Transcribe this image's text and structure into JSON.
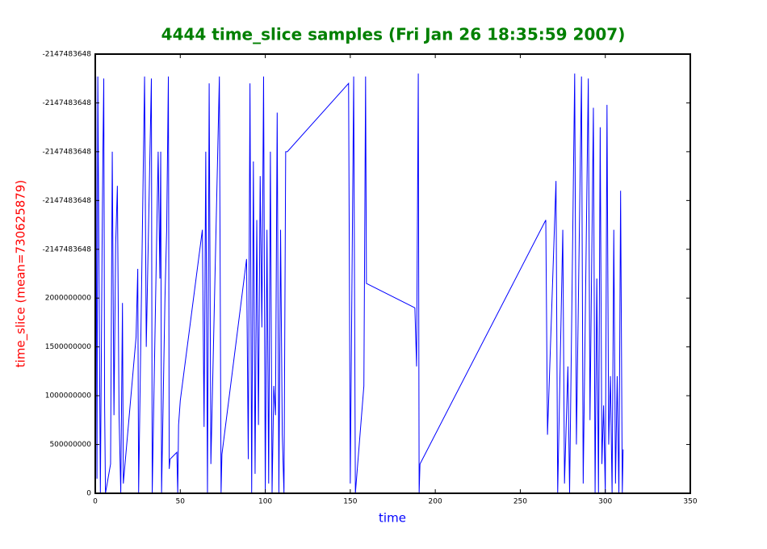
{
  "chart_data": {
    "type": "line",
    "title": "4444 time_slice samples (Fri Jan 26 18:35:59 2007)",
    "x_label": "time",
    "y_label": "time_slice (mean=730625879)",
    "xlim": [
      0,
      350
    ],
    "xticks": [
      0,
      50,
      100,
      150,
      200,
      250,
      300,
      350
    ],
    "ylim": [
      0,
      4500000000
    ],
    "yticks": [
      0,
      500000000,
      1000000000,
      1500000000,
      2000000000,
      {
        "value": 2500000000,
        "label": "-2147483648"
      },
      {
        "value": 3000000000,
        "label": "-2147483648"
      },
      {
        "value": 3500000000,
        "label": "-2147483648"
      },
      {
        "value": 4000000000,
        "label": "-2147483648"
      },
      {
        "value": 4500000000,
        "label": "-2147483648"
      }
    ],
    "series": [
      {
        "color": "#0000ff",
        "x": [
          0.3,
          1,
          1.5,
          3,
          4,
          4.5,
          5,
          5.5,
          6,
          9,
          10,
          11,
          12,
          13,
          14,
          15,
          16,
          16.5,
          24,
          25,
          25.5,
          29,
          30,
          33,
          33.5,
          37,
          38,
          38.5,
          39,
          41,
          42,
          43,
          43.5,
          44,
          48,
          48.5,
          49,
          50,
          63,
          64,
          65,
          66,
          67,
          68,
          73,
          74,
          74.5,
          89,
          90,
          91,
          92,
          93,
          94,
          95,
          96,
          97,
          98,
          99,
          100,
          101,
          102,
          103,
          104,
          105,
          106,
          107,
          108,
          109,
          110,
          111,
          112,
          113,
          149,
          150,
          152,
          153,
          158,
          159,
          159.5,
          188,
          189,
          190,
          190.5,
          191,
          265,
          266,
          271,
          272,
          275,
          276,
          278,
          279,
          282,
          283,
          286,
          287,
          290,
          291,
          293,
          294,
          295,
          296,
          297,
          298,
          299,
          300,
          301,
          302,
          303,
          304,
          305,
          306,
          307,
          308,
          309,
          310,
          310.5
        ],
        "values": [
          4270000000,
          150000000,
          4270000000,
          0,
          2500000000,
          3500000000,
          4250000000,
          900000000,
          0,
          300000000,
          3500000000,
          800000000,
          2550000000,
          3150000000,
          800000000,
          0,
          1950000000,
          100000000,
          1600000000,
          2300000000,
          0,
          4270000000,
          1500000000,
          4250000000,
          0,
          3500000000,
          2200000000,
          3500000000,
          0,
          2000000000,
          2700000000,
          4270000000,
          250000000,
          350000000,
          420000000,
          0,
          700000000,
          950000000,
          2700000000,
          680000000,
          3500000000,
          0,
          4200000000,
          300000000,
          4270000000,
          0,
          400000000,
          2400000000,
          350000000,
          4200000000,
          0,
          3400000000,
          200000000,
          2800000000,
          700000000,
          3250000000,
          1700000000,
          4270000000,
          0,
          2700000000,
          100000000,
          3500000000,
          0,
          1100000000,
          800000000,
          3900000000,
          0,
          2700000000,
          600000000,
          0,
          3500000000,
          3500000000,
          4200000000,
          100000000,
          4270000000,
          0,
          1100000000,
          4270000000,
          2150000000,
          1900000000,
          1300000000,
          4300000000,
          0,
          300000000,
          2800000000,
          600000000,
          3200000000,
          0,
          2700000000,
          100000000,
          1300000000,
          0,
          4300000000,
          500000000,
          4270000000,
          100000000,
          4250000000,
          750000000,
          3950000000,
          0,
          2200000000,
          0,
          3750000000,
          300000000,
          900000000,
          0,
          3980000000,
          500000000,
          1200000000,
          0,
          2700000000,
          100000000,
          1200000000,
          0,
          3100000000,
          0,
          450000000
        ]
      }
    ]
  }
}
